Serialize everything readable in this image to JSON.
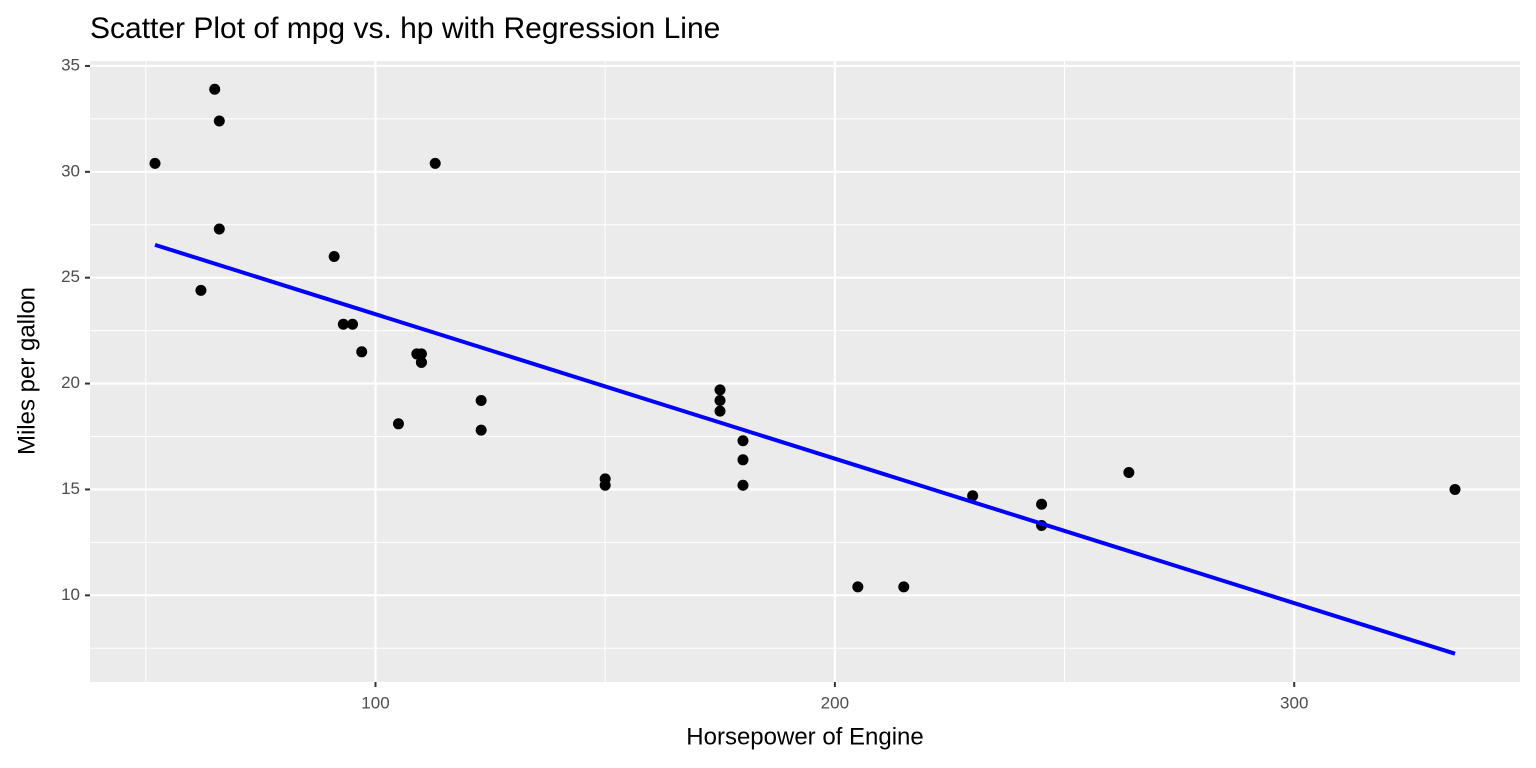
{
  "chart_data": {
    "type": "scatter",
    "title": "Scatter Plot of mpg vs. hp with Regression Line",
    "x_label": "Horsepower of Engine",
    "y_label": "Miles per gallon",
    "points": {
      "color": "#000000",
      "x": [
        110,
        110,
        93,
        110,
        175,
        105,
        245,
        62,
        95,
        123,
        123,
        180,
        180,
        180,
        205,
        215,
        230,
        66,
        52,
        65,
        97,
        150,
        150,
        245,
        175,
        66,
        91,
        113,
        264,
        175,
        335,
        109
      ],
      "y": [
        21.0,
        21.0,
        22.8,
        21.4,
        18.7,
        18.1,
        14.3,
        24.4,
        22.8,
        19.2,
        17.8,
        16.4,
        17.3,
        15.2,
        10.4,
        10.4,
        14.7,
        32.4,
        30.4,
        33.9,
        21.5,
        15.5,
        15.2,
        13.3,
        19.2,
        27.3,
        26.0,
        30.4,
        15.8,
        19.7,
        15.0,
        21.4
      ]
    },
    "regression_line": {
      "color": "#0000ff",
      "x": [
        52,
        335
      ],
      "y": [
        26.551,
        7.243
      ]
    },
    "xlim": [
      37.85,
      349.15
    ],
    "ylim": [
      5.907,
      35.233
    ],
    "xticks": [
      100,
      200,
      300
    ],
    "yticks": [
      10,
      15,
      20,
      25,
      30,
      35
    ],
    "minor_xticks": [
      50,
      150,
      250
    ],
    "minor_yticks": [
      7.5,
      12.5,
      17.5,
      22.5,
      27.5,
      32.5
    ],
    "grid": true
  }
}
